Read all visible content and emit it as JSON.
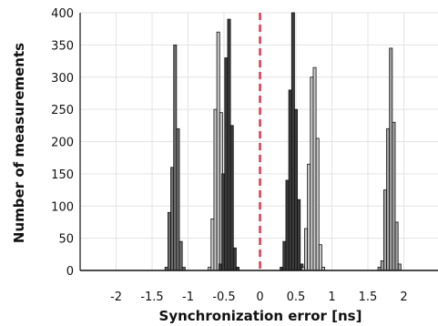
{
  "chart_data": {
    "type": "bar",
    "xlabel": "Synchronization error [ns]",
    "ylabel": "Number of measurements",
    "xlim": [
      -2.5,
      2.5
    ],
    "ylim": [
      0,
      400
    ],
    "xticks": [
      -2,
      -1.5,
      -1,
      -0.5,
      0,
      0.5,
      1,
      1.5,
      2
    ],
    "xtick_labels": [
      "-2",
      "-1.5",
      "-1",
      "-0.5",
      "0",
      "0.5",
      "1",
      "1.5",
      "2"
    ],
    "yticks": [
      0,
      50,
      100,
      150,
      200,
      250,
      300,
      350,
      400
    ],
    "ytick_labels": [
      "0",
      "50",
      "100",
      "150",
      "200",
      "250",
      "300",
      "350",
      "400"
    ],
    "grid": true,
    "bin_width": 0.04,
    "reference_line": {
      "x": 0,
      "style": "dashed",
      "color": "#e0304a"
    },
    "series": [
      {
        "color": "#6f6f6f",
        "bins": [
          [
            -1.3,
            5
          ],
          [
            -1.26,
            90
          ],
          [
            -1.22,
            160
          ],
          [
            -1.18,
            350
          ],
          [
            -1.14,
            220
          ],
          [
            -1.1,
            45
          ],
          [
            -1.06,
            5
          ]
        ]
      },
      {
        "color": "#c8c8c8",
        "bins": [
          [
            -0.7,
            5
          ],
          [
            -0.66,
            80
          ],
          [
            -0.62,
            250
          ],
          [
            -0.58,
            370
          ],
          [
            -0.54,
            245
          ],
          [
            -0.5,
            80
          ],
          [
            -0.46,
            5
          ]
        ]
      },
      {
        "color": "#3c3c3c",
        "bins": [
          [
            -0.55,
            10
          ],
          [
            -0.51,
            150
          ],
          [
            -0.47,
            330
          ],
          [
            -0.43,
            390
          ],
          [
            -0.39,
            225
          ],
          [
            -0.35,
            35
          ],
          [
            -0.31,
            5
          ]
        ]
      },
      {
        "color": "#3c3c3c",
        "bins": [
          [
            0.3,
            5
          ],
          [
            0.34,
            45
          ],
          [
            0.38,
            140
          ],
          [
            0.42,
            280
          ],
          [
            0.46,
            400
          ],
          [
            0.5,
            250
          ],
          [
            0.54,
            110
          ],
          [
            0.58,
            10
          ]
        ]
      },
      {
        "color": "#c8c8c8",
        "bins": [
          [
            0.6,
            5
          ],
          [
            0.64,
            65
          ],
          [
            0.68,
            165
          ],
          [
            0.72,
            300
          ],
          [
            0.76,
            315
          ],
          [
            0.8,
            205
          ],
          [
            0.84,
            40
          ],
          [
            0.88,
            5
          ]
        ]
      },
      {
        "color": "#a5a5a5",
        "bins": [
          [
            1.66,
            5
          ],
          [
            1.7,
            15
          ],
          [
            1.74,
            125
          ],
          [
            1.78,
            220
          ],
          [
            1.82,
            345
          ],
          [
            1.86,
            230
          ],
          [
            1.9,
            75
          ],
          [
            1.94,
            10
          ]
        ]
      }
    ]
  }
}
